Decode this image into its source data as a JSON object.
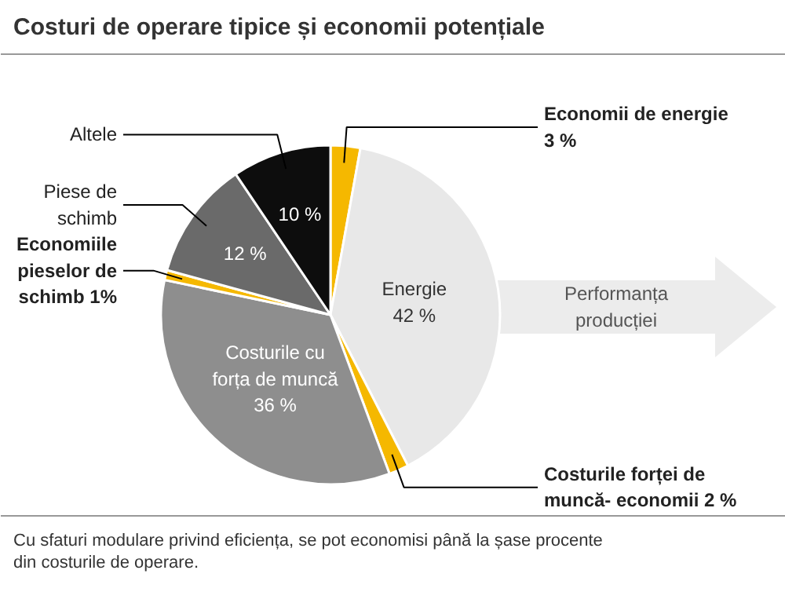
{
  "chart_data": {
    "type": "pie",
    "title": "Costuri de operare tipice și economii potențiale",
    "categories": [
      "Economii de energie",
      "Energie",
      "Costurile forței de muncă- economii",
      "Costurile cu forța de muncă",
      "Economiile pieselor de schimb",
      "Piese de schimb",
      "Altele"
    ],
    "values": [
      3,
      42,
      2,
      36,
      1,
      12,
      10
    ],
    "colors": [
      "#f5b800",
      "#e8e8e8",
      "#f5b800",
      "#8e8e8e",
      "#f5b800",
      "#6a6a6a",
      "#0d0d0d"
    ],
    "value_labels": [
      "3 %",
      "42 %",
      "2 %",
      "36 %",
      "1%",
      "12 %",
      "10 %"
    ],
    "annotations": [
      "Performanța producției",
      "Cu sfaturi modulare privind eficiența, se pot economisi până la șase procente din costurile de operare."
    ]
  }
}
